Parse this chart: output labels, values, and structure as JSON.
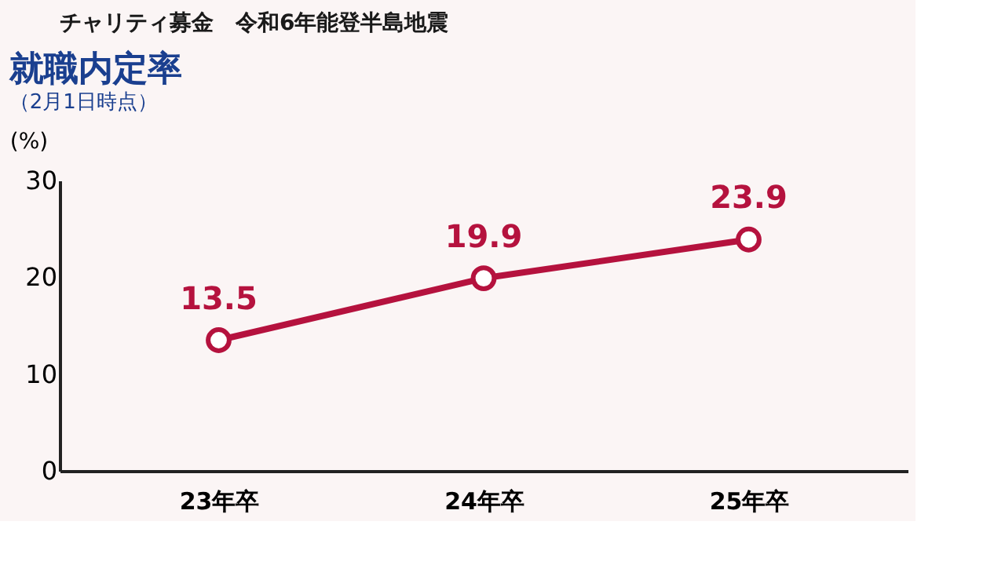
{
  "chart_data": {
    "type": "line",
    "title": "就職内定率",
    "subtitle": "（2月1日時点）",
    "ylabel": "(%)",
    "annotations": [
      "チャリティ募金　令和6年能登半島地震"
    ],
    "categories": [
      "23年卒",
      "24年卒",
      "25年卒"
    ],
    "series": [
      {
        "color": "#b5123e",
        "values": [
          13.5,
          19.9,
          23.9
        ]
      }
    ],
    "ylim": [
      0,
      30
    ],
    "yticks": [
      0,
      10,
      20,
      30
    ],
    "grid": false,
    "legend": false,
    "marker": "circle",
    "line_style": "solid",
    "data_labels": true
  }
}
